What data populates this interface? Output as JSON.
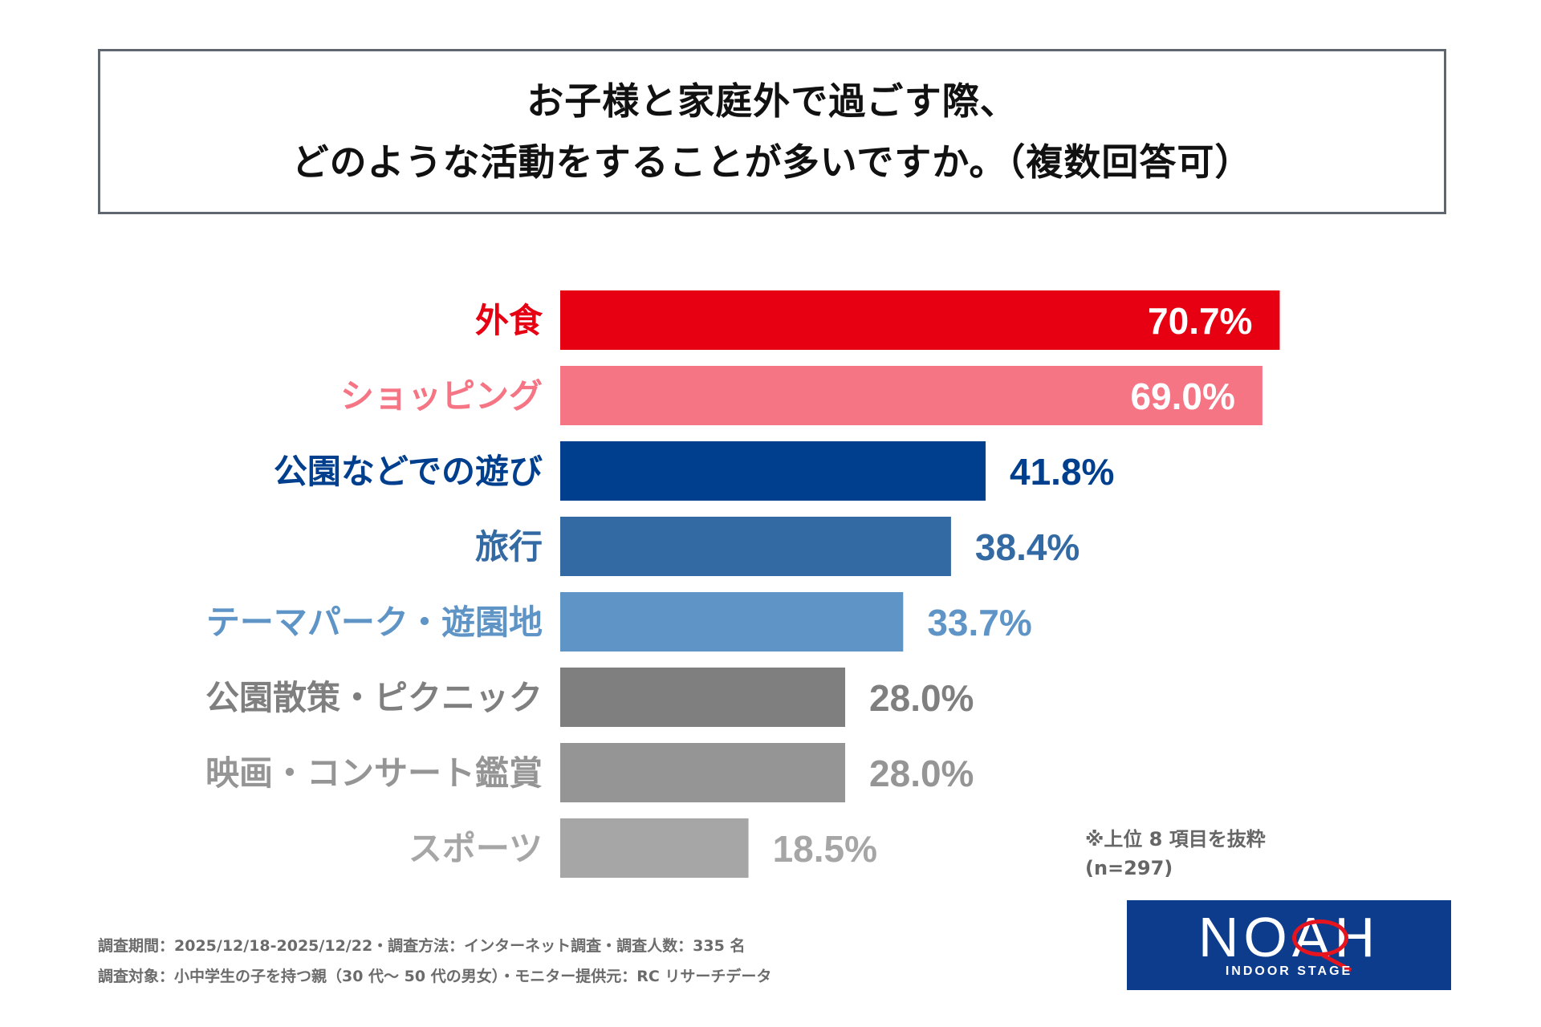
{
  "title": {
    "line1": "お子様と家庭外で過ごす際、",
    "line2": "どのような活動をすることが多いですか。（複数回答可）"
  },
  "chart_data": {
    "type": "bar",
    "orientation": "horizontal",
    "title": "お子様と家庭外で過ごす際、どのような活動をすることが多いですか。（複数回答可）",
    "unit": "%",
    "categories": [
      "外食",
      "ショッピング",
      "公園などでの遊び",
      "旅行",
      "テーマパーク・遊園地",
      "公園散策・ピクニック",
      "映画・コンサート鑑賞",
      "スポーツ"
    ],
    "values": [
      70.7,
      69.0,
      41.8,
      38.4,
      33.7,
      28.0,
      28.0,
      18.5
    ],
    "value_labels": [
      "70.7%",
      "69.0%",
      "41.8%",
      "38.4%",
      "33.7%",
      "28.0%",
      "28.0%",
      "18.5%"
    ],
    "colors": [
      "#e60012",
      "#f57585",
      "#003f8e",
      "#336aa3",
      "#5f95c6",
      "#7f7f7f",
      "#959595",
      "#a6a6a6"
    ],
    "xlim": [
      0,
      100
    ],
    "grid": false,
    "legend": "none"
  },
  "notes": {
    "top_items": "※上位 8 項目を抜粋",
    "sample": "(n=297)"
  },
  "footer": {
    "line1": "調査期間：2025/12/18-2025/12/22・調査方法：インターネット調査・調査人数：335 名",
    "line2": "調査対象：小中学生の子を持つ親（30 代～ 50 代の男女）・モニター提供元：RC リサーチデータ"
  },
  "logo": {
    "text": "NOAH",
    "subtext": "INDOOR STAGE",
    "background": "#0d3c8c",
    "accent": "#e6141e"
  }
}
